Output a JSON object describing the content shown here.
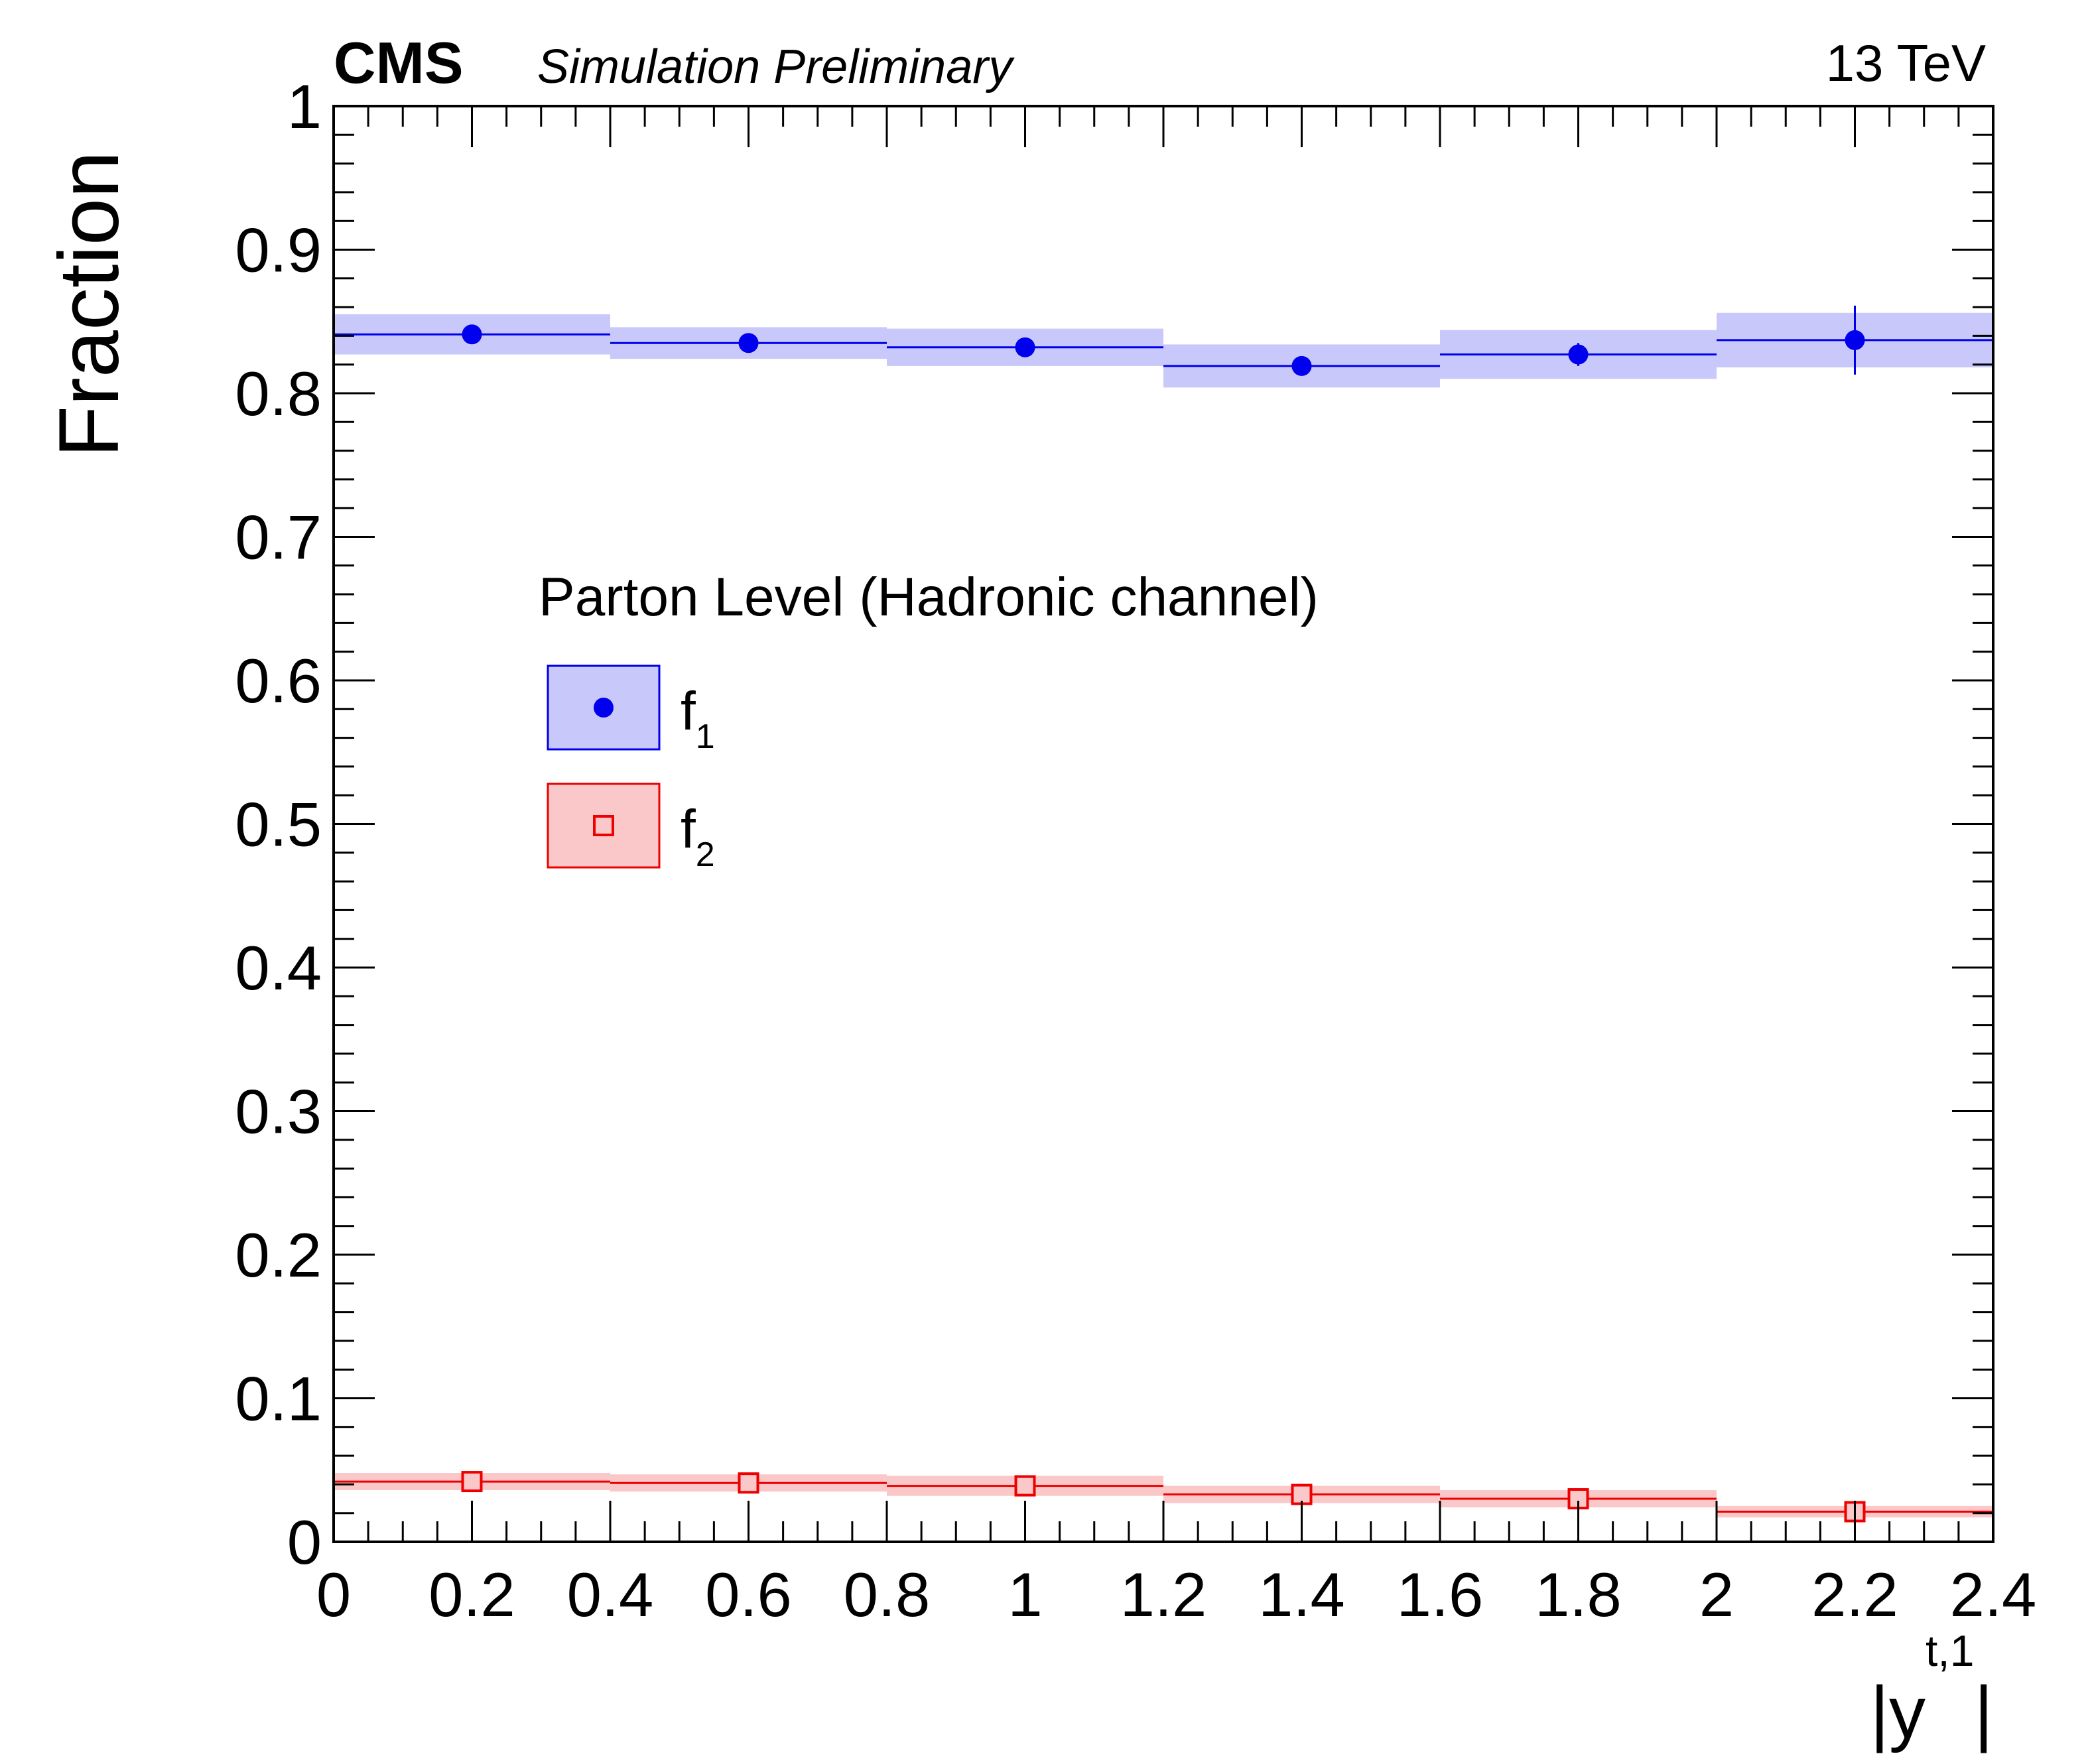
{
  "chart_data": {
    "type": "scatter",
    "experiment_label": "CMS",
    "extra_label": "Simulation Preliminary",
    "energy_label": "13 TeV",
    "ylabel": "Fraction",
    "xlabel_main": "|y",
    "xlabel_sup": "t,1",
    "xlabel_close": "|",
    "xlim": [
      0,
      2.4
    ],
    "ylim": [
      0,
      1
    ],
    "x_ticks": [
      {
        "value": 0,
        "label": "0"
      },
      {
        "value": 0.2,
        "label": "0.2"
      },
      {
        "value": 0.4,
        "label": "0.4"
      },
      {
        "value": 0.6,
        "label": "0.6"
      },
      {
        "value": 0.8,
        "label": "0.8"
      },
      {
        "value": 1.0,
        "label": "1"
      },
      {
        "value": 1.2,
        "label": "1.2"
      },
      {
        "value": 1.4,
        "label": "1.4"
      },
      {
        "value": 1.6,
        "label": "1.6"
      },
      {
        "value": 1.8,
        "label": "1.8"
      },
      {
        "value": 2.0,
        "label": "2"
      },
      {
        "value": 2.2,
        "label": "2.2"
      },
      {
        "value": 2.4,
        "label": "2.4"
      }
    ],
    "y_ticks": [
      {
        "value": 0,
        "label": "0"
      },
      {
        "value": 0.1,
        "label": "0.1"
      },
      {
        "value": 0.2,
        "label": "0.2"
      },
      {
        "value": 0.3,
        "label": "0.3"
      },
      {
        "value": 0.4,
        "label": "0.4"
      },
      {
        "value": 0.5,
        "label": "0.5"
      },
      {
        "value": 0.6,
        "label": "0.6"
      },
      {
        "value": 0.7,
        "label": "0.7"
      },
      {
        "value": 0.8,
        "label": "0.8"
      },
      {
        "value": 0.9,
        "label": "0.9"
      },
      {
        "value": 1.0,
        "label": "1"
      }
    ],
    "bin_edges": [
      0,
      0.4,
      0.8,
      1.2,
      1.6,
      2.0,
      2.4
    ],
    "legend": {
      "header": "Parton Level (Hadronic channel)",
      "position": "upper-left"
    },
    "series": [
      {
        "name": "f",
        "subscript": "1",
        "color": "#0000ee",
        "band_color": "#c8c8fa",
        "marker": "filled-circle",
        "x": [
          0.2,
          0.6,
          1.0,
          1.4,
          1.8,
          2.2
        ],
        "y": [
          0.841,
          0.835,
          0.832,
          0.819,
          0.827,
          0.837
        ],
        "stat_err": [
          0.002,
          0.003,
          0.003,
          0.004,
          0.008,
          0.024
        ],
        "syst_band": [
          0.014,
          0.011,
          0.013,
          0.015,
          0.017,
          0.019
        ]
      },
      {
        "name": "f",
        "subscript": "2",
        "color": "#ee0000",
        "band_color": "#fac8c8",
        "marker": "open-square",
        "x": [
          0.2,
          0.6,
          1.0,
          1.4,
          1.8,
          2.2
        ],
        "y": [
          0.042,
          0.041,
          0.039,
          0.033,
          0.03,
          0.021
        ],
        "stat_err": [
          0.001,
          0.001,
          0.001,
          0.001,
          0.002,
          0.003
        ],
        "syst_band": [
          0.006,
          0.006,
          0.007,
          0.006,
          0.006,
          0.004
        ]
      }
    ]
  }
}
